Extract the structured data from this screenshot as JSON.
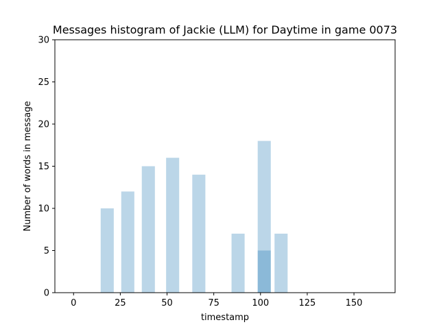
{
  "chart_data": {
    "type": "bar",
    "title": "Messages histogram of Jackie (LLM) for Daytime in game 0073",
    "xlabel": "timestamp",
    "ylabel": "Number of words in message",
    "xlim": [
      -10,
      172
    ],
    "ylim": [
      0,
      30
    ],
    "xticks": [
      0,
      25,
      50,
      75,
      100,
      125,
      150
    ],
    "yticks": [
      0,
      5,
      10,
      15,
      20,
      25,
      30
    ],
    "bar_width": 7,
    "bar_color": "#1f77b4",
    "bar_opacity": 0.3,
    "bars": [
      {
        "x": 18,
        "value": 10
      },
      {
        "x": 29,
        "value": 12
      },
      {
        "x": 40,
        "value": 15
      },
      {
        "x": 53,
        "value": 16
      },
      {
        "x": 67,
        "value": 14
      },
      {
        "x": 88,
        "value": 7
      },
      {
        "x": 102,
        "value": 18
      },
      {
        "x": 102,
        "value": 5
      },
      {
        "x": 111,
        "value": 7
      }
    ],
    "grid": false,
    "legend": false
  }
}
